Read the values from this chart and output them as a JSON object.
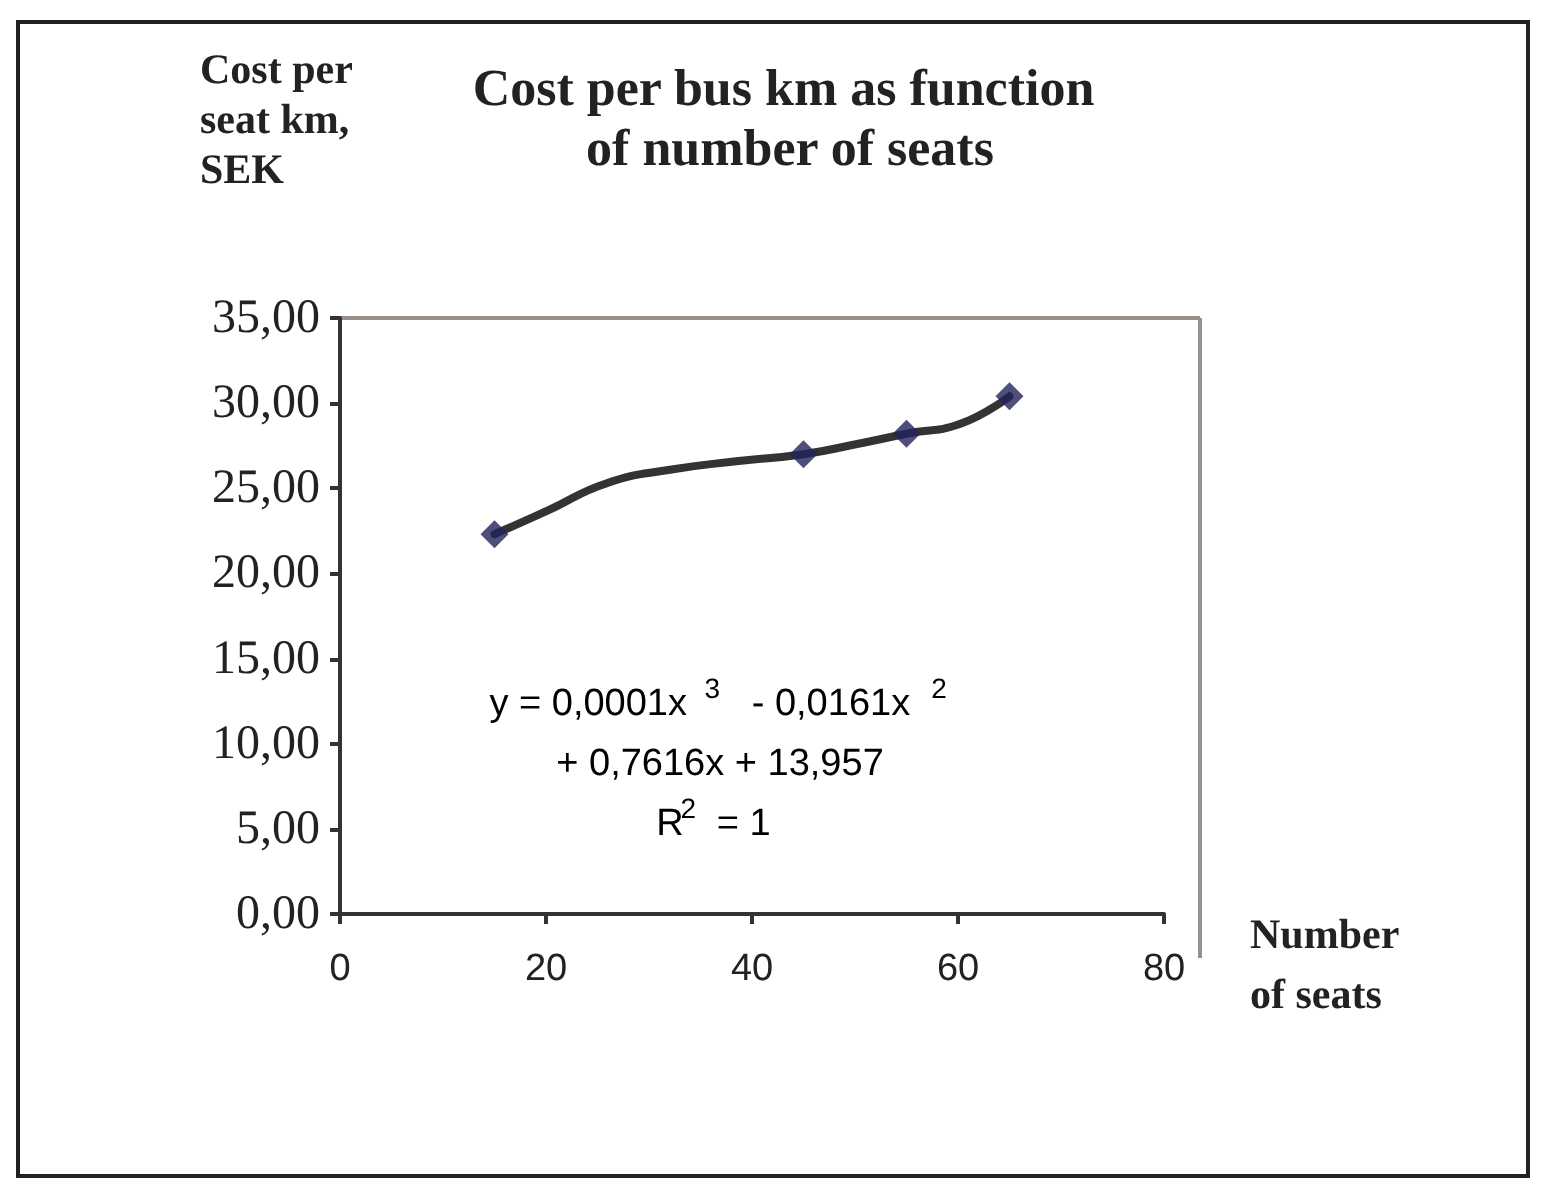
{
  "chart_data": {
    "type": "scatter",
    "title": "Cost per bus km as function of number of seats",
    "ylabel": "Cost per seat km, SEK",
    "xlabel": "Number of seats",
    "xlim": [
      0,
      80
    ],
    "xticks": [
      0,
      20,
      40,
      60,
      80
    ],
    "ylim": [
      0,
      35
    ],
    "yticks": [
      {
        "value": 0,
        "label": "0,00"
      },
      {
        "value": 5,
        "label": "5,00"
      },
      {
        "value": 10,
        "label": "10,00"
      },
      {
        "value": 15,
        "label": "15,00"
      },
      {
        "value": 20,
        "label": "20,00"
      },
      {
        "value": 25,
        "label": "25,00"
      },
      {
        "value": 30,
        "label": "30,00"
      },
      {
        "value": 35,
        "label": "35,00"
      }
    ],
    "grid": false,
    "series": [
      {
        "type": "line",
        "color": "#333333",
        "marker": "none",
        "x": [
          15,
          20.2,
          25.9,
          32.2,
          38.7,
          45,
          50.2,
          55,
          60.3,
          65
        ],
        "values": [
          22.3,
          23.7,
          25.3,
          26.1,
          26.6,
          27.0,
          27.6,
          28.2,
          28.8,
          30.4
        ]
      },
      {
        "color": "#23235e",
        "marker": "diamond",
        "x": [
          15,
          45,
          55,
          65
        ],
        "values": [
          22.3,
          27.0,
          28.2,
          30.4
        ]
      }
    ],
    "annotations": [
      "y = 0,0001x$^{3}$ - 0,0161x$^{2}$ + 0,7616x + 13,957",
      "R$^{2}$ = 1"
    ]
  }
}
